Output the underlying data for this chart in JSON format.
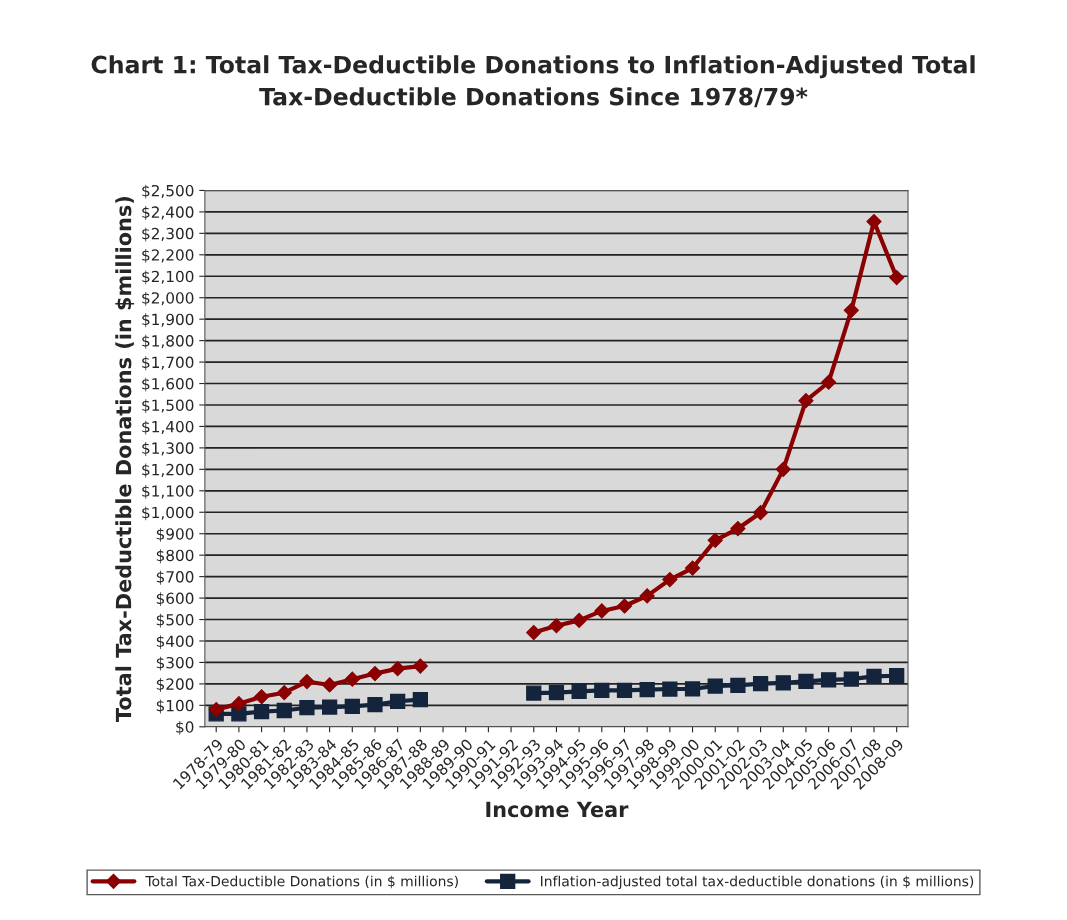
{
  "chart_data": {
    "type": "line",
    "title": "Chart 1: Total Tax-Deductible Donations to Inflation-Adjusted Total\nTax-Deductible Donations Since 1978/79*",
    "xlabel": "Income Year",
    "ylabel": "Total Tax-Deductible Donations (in $millions)",
    "categories": [
      "1978-79",
      "1979-80",
      "1980-81",
      "1981-82",
      "1982-83",
      "1983-84",
      "1984-85",
      "1985-86",
      "1986-87",
      "1987-88",
      "1988-89",
      "1989-90",
      "1990-91",
      "1991-92",
      "1992-93",
      "1993-94",
      "1994-95",
      "1995-96",
      "1996-97",
      "1997-98",
      "1998-99",
      "1999-00",
      "2000-01",
      "2001-02",
      "2002-03",
      "2003-04",
      "2004-05",
      "2005-06",
      "2006-07",
      "2007-08",
      "2008-09"
    ],
    "series": [
      {
        "name": "Total Tax-Deductible Donations (in $ millions)",
        "color": "#8b0000",
        "marker": "diamond",
        "values": [
          80,
          108,
          140,
          159,
          211,
          195,
          222,
          248,
          271,
          283,
          null,
          null,
          null,
          null,
          439,
          471,
          496,
          540,
          563,
          610,
          686,
          740,
          869,
          924,
          998,
          1200,
          1520,
          1606,
          1941,
          2355,
          2094
        ]
      },
      {
        "name": "Inflation-adjusted total tax-deductible donations (in $ millions)",
        "color": "#14243d",
        "marker": "square",
        "values": [
          60,
          60,
          71,
          76,
          89,
          92,
          95,
          103,
          119,
          127,
          null,
          null,
          null,
          null,
          157,
          159,
          165,
          170,
          170,
          173,
          176,
          177,
          190,
          193,
          201,
          205,
          212,
          219,
          222,
          235,
          238
        ]
      }
    ],
    "ylim": [
      0,
      2500
    ],
    "yticks": [
      {
        "value": 0,
        "label": "$0"
      },
      {
        "value": 100,
        "label": "$100"
      },
      {
        "value": 200,
        "label": "$200"
      },
      {
        "value": 300,
        "label": "$300"
      },
      {
        "value": 400,
        "label": "$400"
      },
      {
        "value": 500,
        "label": "$500"
      },
      {
        "value": 600,
        "label": "$600"
      },
      {
        "value": 700,
        "label": "$700"
      },
      {
        "value": 800,
        "label": "$800"
      },
      {
        "value": 900,
        "label": "$900"
      },
      {
        "value": 1000,
        "label": "$1,000"
      },
      {
        "value": 1100,
        "label": "$1,100"
      },
      {
        "value": 1200,
        "label": "$1,200"
      },
      {
        "value": 1300,
        "label": "$1,300"
      },
      {
        "value": 1400,
        "label": "$1,400"
      },
      {
        "value": 1500,
        "label": "$1,500"
      },
      {
        "value": 1600,
        "label": "$1,600"
      },
      {
        "value": 1700,
        "label": "$1,700"
      },
      {
        "value": 1800,
        "label": "$1,800"
      },
      {
        "value": 1900,
        "label": "$1,900"
      },
      {
        "value": 2000,
        "label": "$2,000"
      },
      {
        "value": 2100,
        "label": "$2,100"
      },
      {
        "value": 2200,
        "label": "$2,200"
      },
      {
        "value": 2300,
        "label": "$2,300"
      },
      {
        "value": 2400,
        "label": "$2,400"
      },
      {
        "value": 2500,
        "label": "$2,500"
      }
    ],
    "grid": "y",
    "legend": "bottom"
  }
}
